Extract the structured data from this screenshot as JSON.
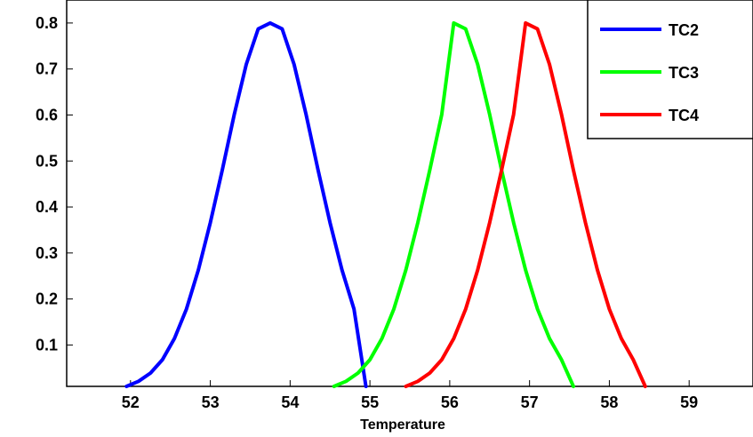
{
  "chart_data": {
    "type": "line",
    "title": "",
    "xlabel": "Temperature",
    "ylabel": "",
    "xlim": [
      51.2,
      59.8
    ],
    "ylim": [
      0.01,
      0.85
    ],
    "xticks": [
      52,
      53,
      54,
      55,
      56,
      57,
      58,
      59
    ],
    "yticks": [
      0.1,
      0.2,
      0.3,
      0.4,
      0.5,
      0.6,
      0.7,
      0.8
    ],
    "ytick_labels": [
      "0.1",
      "0.2",
      "0.3",
      "0.4",
      "0.5",
      "0.6",
      "0.7",
      "0.8"
    ],
    "grid": false,
    "legend_position": "top-right",
    "series": [
      {
        "name": "TC2",
        "color": "#0000ff",
        "x": [
          51.95,
          52.1,
          52.25,
          52.4,
          52.55,
          52.7,
          52.85,
          53.0,
          53.15,
          53.3,
          53.45,
          53.6,
          53.75,
          53.9,
          54.05,
          54.2,
          54.35,
          54.5,
          54.65,
          54.8,
          54.95
        ],
        "y": [
          0.01,
          0.021,
          0.039,
          0.068,
          0.114,
          0.178,
          0.263,
          0.366,
          0.48,
          0.601,
          0.71,
          0.787,
          0.8,
          0.787,
          0.71,
          0.601,
          0.48,
          0.366,
          0.263,
          0.178,
          0.01
        ]
      },
      {
        "name": "TC3",
        "color": "#00ff00",
        "x": [
          54.55,
          54.7,
          54.85,
          55.0,
          55.15,
          55.3,
          55.45,
          55.6,
          55.75,
          55.9,
          56.05,
          56.2,
          56.35,
          56.5,
          56.65,
          56.8,
          56.95,
          57.1,
          57.25,
          57.4,
          57.55
        ],
        "y": [
          0.01,
          0.021,
          0.039,
          0.068,
          0.114,
          0.178,
          0.263,
          0.366,
          0.48,
          0.601,
          0.8,
          0.787,
          0.71,
          0.601,
          0.48,
          0.366,
          0.263,
          0.178,
          0.114,
          0.068,
          0.01
        ]
      },
      {
        "name": "TC4",
        "color": "#ff0000",
        "x": [
          55.45,
          55.6,
          55.75,
          55.9,
          56.05,
          56.2,
          56.35,
          56.5,
          56.65,
          56.8,
          56.95,
          57.1,
          57.25,
          57.4,
          57.55,
          57.7,
          57.85,
          58.0,
          58.15,
          58.3,
          58.45
        ],
        "y": [
          0.01,
          0.021,
          0.039,
          0.068,
          0.114,
          0.178,
          0.263,
          0.366,
          0.48,
          0.601,
          0.8,
          0.787,
          0.71,
          0.601,
          0.48,
          0.366,
          0.263,
          0.178,
          0.114,
          0.068,
          0.01
        ]
      }
    ]
  }
}
